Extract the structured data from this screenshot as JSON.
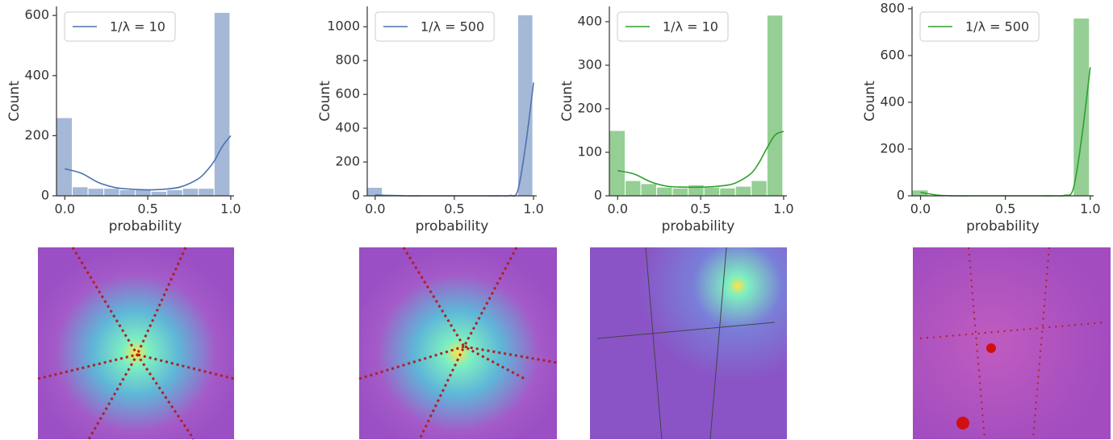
{
  "chart_data": [
    {
      "type": "histogram",
      "xlabel": "probability",
      "ylabel": "Count",
      "color": "#4c72b0",
      "legend": "upper left",
      "bins": [
        -0.05,
        0.045,
        0.14,
        0.235,
        0.33,
        0.425,
        0.52,
        0.615,
        0.71,
        0.805,
        0.9,
        0.995
      ],
      "values": [
        260,
        30,
        25,
        25,
        20,
        20,
        15,
        20,
        25,
        25,
        610
      ],
      "kde": {
        "name": "1/λ = 10",
        "color": "#4c72b0",
        "x": [
          0,
          0.1,
          0.2,
          0.3,
          0.4,
          0.5,
          0.6,
          0.7,
          0.8,
          0.85,
          0.9,
          0.95,
          1.0
        ],
        "values": [
          90,
          75,
          45,
          28,
          22,
          20,
          22,
          30,
          55,
          80,
          115,
          165,
          200
        ]
      },
      "xlim": [
        -0.05,
        1.02
      ],
      "ylim": [
        0,
        630
      ],
      "xticks": [
        {
          "value": 0,
          "label": "0.0"
        },
        0.5,
        {
          "value": 1,
          "label": "1.0"
        }
      ],
      "yticks": [
        0,
        200,
        400,
        600
      ]
    },
    {
      "type": "histogram",
      "xlabel": "probability",
      "ylabel": "Count",
      "color": "#4c72b0",
      "legend": "upper left",
      "bins": [
        -0.05,
        0.045,
        0.14,
        0.235,
        0.33,
        0.425,
        0.52,
        0.615,
        0.71,
        0.805,
        0.9,
        0.995
      ],
      "values": [
        50,
        0,
        0,
        0,
        0,
        0,
        0,
        0,
        0,
        0,
        1070
      ],
      "kde": {
        "name": "1/λ = 500",
        "color": "#4c72b0",
        "x": [
          0,
          0.1,
          0.2,
          0.3,
          0.4,
          0.5,
          0.6,
          0.7,
          0.8,
          0.85,
          0.9,
          0.95,
          1.0
        ],
        "values": [
          5,
          2,
          0,
          0,
          0,
          0,
          0,
          0,
          0,
          2,
          30,
          300,
          670
        ]
      },
      "xlim": [
        -0.05,
        1.02
      ],
      "ylim": [
        0,
        1120
      ],
      "xticks": [
        {
          "value": 0,
          "label": "0.0"
        },
        0.5,
        {
          "value": 1,
          "label": "1.0"
        }
      ],
      "yticks": [
        0,
        200,
        400,
        600,
        800,
        1000
      ]
    },
    {
      "type": "histogram",
      "xlabel": "probability",
      "ylabel": "Count",
      "color": "#2ca02c",
      "legend": "upper left",
      "bins": [
        -0.05,
        0.045,
        0.14,
        0.235,
        0.33,
        0.425,
        0.52,
        0.615,
        0.71,
        0.805,
        0.9,
        0.995
      ],
      "values": [
        150,
        35,
        28,
        20,
        18,
        25,
        20,
        18,
        22,
        35,
        415
      ],
      "kde": {
        "name": "1/λ = 10",
        "color": "#2ca02c",
        "x": [
          0,
          0.1,
          0.2,
          0.3,
          0.4,
          0.5,
          0.6,
          0.7,
          0.8,
          0.85,
          0.9,
          0.95,
          1.0
        ],
        "values": [
          58,
          50,
          32,
          22,
          20,
          20,
          22,
          28,
          50,
          75,
          110,
          140,
          148
        ]
      },
      "xlim": [
        -0.05,
        1.02
      ],
      "ylim": [
        0,
        435
      ],
      "xticks": [
        {
          "value": 0,
          "label": "0.0"
        },
        0.5,
        {
          "value": 1,
          "label": "1.0"
        }
      ],
      "yticks": [
        0,
        100,
        200,
        300,
        400
      ]
    },
    {
      "type": "histogram",
      "xlabel": "probability",
      "ylabel": "Count",
      "color": "#2ca02c",
      "legend": "upper left",
      "bins": [
        -0.05,
        0.045,
        0.14,
        0.235,
        0.33,
        0.425,
        0.52,
        0.615,
        0.71,
        0.805,
        0.9,
        0.995
      ],
      "values": [
        25,
        0,
        0,
        0,
        0,
        0,
        0,
        0,
        0,
        0,
        760
      ],
      "kde": {
        "name": "1/λ = 500",
        "color": "#2ca02c",
        "x": [
          0,
          0.1,
          0.2,
          0.3,
          0.4,
          0.5,
          0.6,
          0.7,
          0.8,
          0.85,
          0.9,
          0.95,
          1.0
        ],
        "values": [
          15,
          3,
          0,
          0,
          0,
          0,
          0,
          0,
          0,
          2,
          30,
          250,
          550
        ]
      },
      "xlim": [
        -0.05,
        1.02
      ],
      "ylim": [
        0,
        810
      ],
      "xticks": [
        {
          "value": 0,
          "label": "0.0"
        },
        0.5,
        {
          "value": 1,
          "label": "1.0"
        }
      ],
      "yticks": [
        0,
        200,
        400,
        600,
        800
      ]
    }
  ]
}
